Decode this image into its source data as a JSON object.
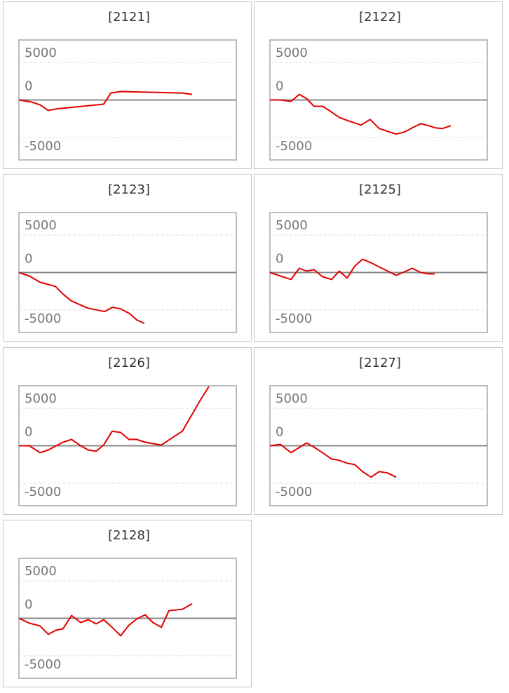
{
  "chart_data": [
    {
      "type": "line",
      "title": "[2121]",
      "color": "#e00000",
      "xlim": [
        0,
        100
      ],
      "ylim": [
        -8000,
        8000
      ],
      "yticks": [
        5000,
        0,
        -5000
      ],
      "x": [
        0,
        5.8,
        9.7,
        13.5,
        17.1,
        39,
        42.3,
        46.8,
        75.2,
        79.7
      ],
      "values": [
        0,
        -280,
        -650,
        -1400,
        -1200,
        -560,
        930,
        1120,
        930,
        740
      ]
    },
    {
      "type": "line",
      "title": "[2122]",
      "color": "#e00000",
      "xlim": [
        0,
        100
      ],
      "ylim": [
        -8000,
        8000
      ],
      "yticks": [
        5000,
        0,
        -5000
      ],
      "x": [
        0,
        4.8,
        9.7,
        13.5,
        16.8,
        20.3,
        24.2,
        27.7,
        31.9,
        36.1,
        41.9,
        46.1,
        50.3,
        54.2,
        58.1,
        61.9,
        65.5,
        69.4,
        73.2,
        76.1,
        79.4,
        83.2
      ],
      "values": [
        0,
        0,
        -190,
        740,
        190,
        -840,
        -840,
        -1490,
        -2330,
        -2790,
        -3350,
        -2600,
        -3810,
        -4190,
        -4560,
        -4280,
        -3720,
        -3160,
        -3440,
        -3720,
        -3810,
        -3440
      ]
    },
    {
      "type": "line",
      "title": "[2123]",
      "color": "#e00000",
      "xlim": [
        0,
        100
      ],
      "ylim": [
        -8000,
        8000
      ],
      "yticks": [
        5000,
        0,
        -5000
      ],
      "x": [
        0,
        4.8,
        9.7,
        16.8,
        20.3,
        24.2,
        31.6,
        39.4,
        42.9,
        46.8,
        51,
        54.2,
        57.7
      ],
      "values": [
        0,
        -470,
        -1300,
        -1860,
        -2880,
        -3810,
        -4740,
        -5210,
        -4650,
        -4840,
        -5490,
        -6320,
        -6790
      ]
    },
    {
      "type": "line",
      "title": "[2125]",
      "color": "#e00000",
      "xlim": [
        0,
        100
      ],
      "ylim": [
        -8000,
        8000
      ],
      "yticks": [
        5000,
        0,
        -5000
      ],
      "x": [
        0,
        9.7,
        13.5,
        16.8,
        20.3,
        24.2,
        28.4,
        31.9,
        35.5,
        39,
        42.6,
        46.5,
        50.3,
        54.2,
        58.1,
        61.9,
        65.5,
        69.4,
        73.2,
        75.8
      ],
      "values": [
        0,
        -930,
        560,
        190,
        370,
        -560,
        -930,
        190,
        -740,
        840,
        1770,
        1300,
        740,
        190,
        -370,
        90,
        560,
        0,
        -190,
        -190
      ]
    },
    {
      "type": "line",
      "title": "[2126]",
      "color": "#e00000",
      "xlim": [
        0,
        100
      ],
      "ylim": [
        -8000,
        8000
      ],
      "yticks": [
        5000,
        0,
        -5000
      ],
      "x": [
        0,
        4.8,
        9.7,
        13.5,
        20.3,
        24.2,
        28.4,
        31.9,
        35.5,
        39,
        42.9,
        46.8,
        50.6,
        54.2,
        58.1,
        65.5,
        70.3,
        75.2,
        83.2,
        87.4
      ],
      "values": [
        0,
        0,
        -930,
        -560,
        470,
        840,
        0,
        -560,
        -740,
        90,
        1950,
        1770,
        840,
        840,
        470,
        90,
        1020,
        1950,
        5950,
        7910
      ]
    },
    {
      "type": "line",
      "title": "[2127]",
      "color": "#e00000",
      "xlim": [
        0,
        100
      ],
      "ylim": [
        -8000,
        8000
      ],
      "yticks": [
        5000,
        0,
        -5000
      ],
      "x": [
        0,
        4.8,
        9.7,
        16.8,
        20.3,
        24.2,
        28.4,
        31.9,
        35.5,
        39,
        42.6,
        46.5,
        50.3,
        54.2,
        58.1
      ],
      "values": [
        0,
        190,
        -930,
        370,
        -190,
        -930,
        -1770,
        -1950,
        -2330,
        -2510,
        -3440,
        -4190,
        -3440,
        -3630,
        -4190
      ]
    },
    {
      "type": "line",
      "title": "[2128]",
      "color": "#e00000",
      "xlim": [
        0,
        100
      ],
      "ylim": [
        -8000,
        8000
      ],
      "yticks": [
        5000,
        0,
        -5000
      ],
      "x": [
        0,
        4.8,
        9.7,
        13.5,
        17.1,
        20.3,
        24.2,
        28.4,
        31.9,
        35.5,
        39,
        42.9,
        46.8,
        50.6,
        54.2,
        58.1,
        61.6,
        65.5,
        69,
        75.2,
        79.7
      ],
      "values": [
        0,
        -650,
        -1020,
        -2140,
        -1580,
        -1400,
        370,
        -560,
        -190,
        -740,
        -190,
        -1210,
        -2330,
        -930,
        -90,
        470,
        -560,
        -1210,
        1020,
        1210,
        1950
      ]
    }
  ]
}
